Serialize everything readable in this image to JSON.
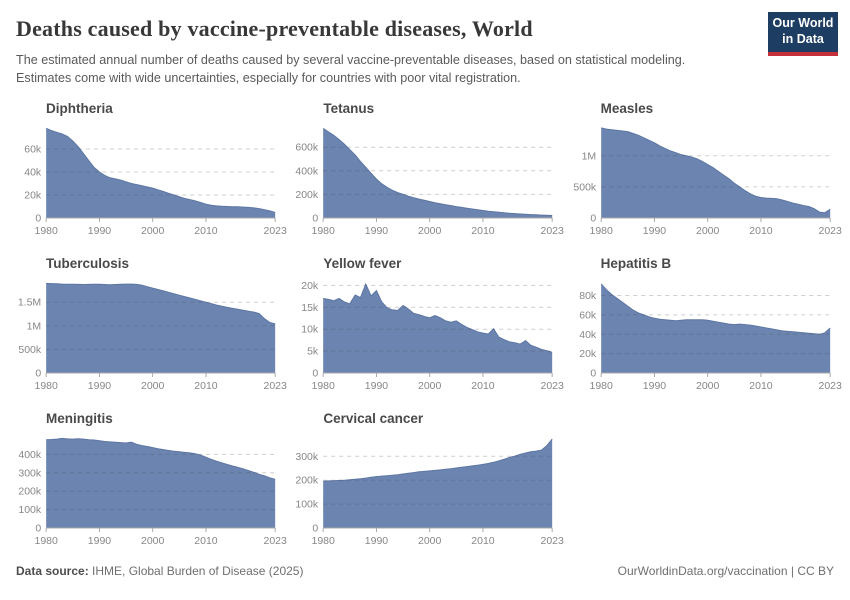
{
  "header": {
    "title": "Deaths caused by vaccine-preventable diseases, World",
    "subtitle": "The estimated annual number of deaths caused by several vaccine-preventable diseases, based on statistical modeling. Estimates come with wide uncertainties, especially for countries with poor vital registration.",
    "logo": {
      "line1": "Our World",
      "line2": "in Data"
    }
  },
  "footer": {
    "source_label": "Data source:",
    "source_value": " IHME, Global Burden of Disease (2025)",
    "credit": "OurWorldinData.org/vaccination | CC BY"
  },
  "colors": {
    "area_fill": "#6b84b0",
    "area_line": "#5d76a4",
    "logo_navy": "#1d3d63",
    "logo_red": "#c5313b",
    "grid": "rgba(80,80,80,0.28)",
    "axis": "#a8a8a8",
    "tick_text": "#878787"
  },
  "chart_data": [
    {
      "type": "area",
      "title": "Diphtheria",
      "x_start": 1980,
      "x_end": 2023,
      "xticks": [
        1980,
        1990,
        2000,
        2010,
        2023
      ],
      "ylim": [
        0,
        80000
      ],
      "yticks": [
        {
          "v": 0,
          "label": "0"
        },
        {
          "v": 20000,
          "label": "20k"
        },
        {
          "v": 40000,
          "label": "40k"
        },
        {
          "v": 60000,
          "label": "60k"
        }
      ],
      "values": [
        78000,
        76000,
        74500,
        73000,
        71000,
        67000,
        62000,
        56000,
        50000,
        44000,
        40000,
        37000,
        35000,
        34000,
        33000,
        31500,
        30000,
        29000,
        28000,
        27000,
        26000,
        24500,
        23000,
        21500,
        20000,
        18500,
        17000,
        16000,
        15000,
        13500,
        12000,
        11000,
        10500,
        10200,
        10000,
        9800,
        9700,
        9500,
        9200,
        8800,
        8200,
        7200,
        6200,
        4800
      ]
    },
    {
      "type": "area",
      "title": "Tetanus",
      "x_start": 1980,
      "x_end": 2023,
      "xticks": [
        1980,
        1990,
        2000,
        2010,
        2023
      ],
      "ylim": [
        0,
        780000
      ],
      "yticks": [
        {
          "v": 0,
          "label": "0"
        },
        {
          "v": 200000,
          "label": "200k"
        },
        {
          "v": 400000,
          "label": "400k"
        },
        {
          "v": 600000,
          "label": "600k"
        }
      ],
      "values": [
        760000,
        730000,
        700000,
        665000,
        625000,
        580000,
        535000,
        480000,
        430000,
        380000,
        330000,
        290000,
        260000,
        235000,
        215000,
        200000,
        185000,
        172000,
        160000,
        150000,
        140000,
        130000,
        121000,
        113000,
        105000,
        97000,
        90000,
        83000,
        76000,
        70000,
        64000,
        58000,
        53000,
        48000,
        44000,
        40000,
        37000,
        34000,
        31000,
        29000,
        27000,
        25000,
        23000,
        21000
      ]
    },
    {
      "type": "area",
      "title": "Measles",
      "x_start": 1980,
      "x_end": 2023,
      "xticks": [
        1980,
        1990,
        2000,
        2010,
        2023
      ],
      "ylim": [
        0,
        1480000
      ],
      "yticks": [
        {
          "v": 0,
          "label": "0"
        },
        {
          "v": 500000,
          "label": "500k"
        },
        {
          "v": 1000000,
          "label": "1M"
        }
      ],
      "values": [
        1450000,
        1430000,
        1420000,
        1410000,
        1400000,
        1390000,
        1360000,
        1330000,
        1290000,
        1250000,
        1210000,
        1160000,
        1120000,
        1080000,
        1050000,
        1020000,
        1000000,
        980000,
        950000,
        910000,
        860000,
        810000,
        750000,
        690000,
        630000,
        560000,
        500000,
        440000,
        390000,
        350000,
        330000,
        320000,
        315000,
        310000,
        290000,
        265000,
        240000,
        220000,
        200000,
        185000,
        150000,
        95000,
        85000,
        140000
      ]
    },
    {
      "type": "area",
      "title": "Tuberculosis",
      "x_start": 1980,
      "x_end": 2023,
      "xticks": [
        1980,
        1990,
        2000,
        2010,
        2023
      ],
      "ylim": [
        0,
        1950000
      ],
      "yticks": [
        {
          "v": 0,
          "label": "0"
        },
        {
          "v": 500000,
          "label": "500k"
        },
        {
          "v": 1000000,
          "label": "1M"
        },
        {
          "v": 1500000,
          "label": "1.5M"
        }
      ],
      "values": [
        1900000,
        1895000,
        1890000,
        1885000,
        1882000,
        1880000,
        1878000,
        1876000,
        1878000,
        1880000,
        1880000,
        1876000,
        1872000,
        1875000,
        1880000,
        1884000,
        1884000,
        1878000,
        1858000,
        1830000,
        1800000,
        1770000,
        1740000,
        1710000,
        1680000,
        1650000,
        1620000,
        1590000,
        1560000,
        1530000,
        1500000,
        1470000,
        1440000,
        1415000,
        1390000,
        1370000,
        1350000,
        1330000,
        1310000,
        1290000,
        1260000,
        1150000,
        1070000,
        1040000
      ]
    },
    {
      "type": "area",
      "title": "Yellow fever",
      "x_start": 1980,
      "x_end": 2023,
      "xticks": [
        1980,
        1990,
        2000,
        2010,
        2023
      ],
      "ylim": [
        0,
        21000
      ],
      "yticks": [
        {
          "v": 0,
          "label": "0"
        },
        {
          "v": 5000,
          "label": "5k"
        },
        {
          "v": 10000,
          "label": "10k"
        },
        {
          "v": 15000,
          "label": "15k"
        },
        {
          "v": 20000,
          "label": "20k"
        }
      ],
      "values": [
        17000,
        16800,
        16500,
        17000,
        16200,
        15800,
        17800,
        17200,
        20300,
        17600,
        18800,
        16200,
        14900,
        14400,
        14300,
        15400,
        14600,
        13600,
        13300,
        12900,
        12600,
        13100,
        12600,
        11900,
        11600,
        11900,
        11100,
        10400,
        9900,
        9400,
        9100,
        8900,
        10100,
        8200,
        7600,
        7100,
        6900,
        6600,
        7400,
        6300,
        5900,
        5400,
        5100,
        4700
      ]
    },
    {
      "type": "area",
      "title": "Hepatitis B",
      "x_start": 1980,
      "x_end": 2023,
      "xticks": [
        1980,
        1990,
        2000,
        2010,
        2023
      ],
      "ylim": [
        0,
        95000
      ],
      "yticks": [
        {
          "v": 0,
          "label": "0"
        },
        {
          "v": 20000,
          "label": "20k"
        },
        {
          "v": 40000,
          "label": "40k"
        },
        {
          "v": 60000,
          "label": "60k"
        },
        {
          "v": 80000,
          "label": "80k"
        }
      ],
      "values": [
        92000,
        86000,
        81000,
        77000,
        73000,
        69000,
        65000,
        62000,
        60000,
        58000,
        56500,
        55500,
        55000,
        54500,
        54000,
        54500,
        55000,
        55000,
        55000,
        55000,
        54500,
        53500,
        52500,
        51500,
        50500,
        50000,
        50500,
        50000,
        49500,
        48500,
        47500,
        46500,
        45500,
        44500,
        43500,
        43000,
        42500,
        42000,
        41500,
        41000,
        40500,
        40000,
        41500,
        46500
      ]
    },
    {
      "type": "area",
      "title": "Meningitis",
      "x_start": 1980,
      "x_end": 2023,
      "xticks": [
        1980,
        1990,
        2000,
        2010,
        2023
      ],
      "ylim": [
        0,
        500000
      ],
      "yticks": [
        {
          "v": 0,
          "label": "0"
        },
        {
          "v": 100000,
          "label": "100k"
        },
        {
          "v": 200000,
          "label": "200k"
        },
        {
          "v": 300000,
          "label": "300k"
        },
        {
          "v": 400000,
          "label": "400k"
        }
      ],
      "values": [
        480000,
        481000,
        483000,
        487000,
        484000,
        483000,
        485000,
        483000,
        480000,
        478000,
        474000,
        470000,
        468000,
        466000,
        464000,
        462000,
        467000,
        455000,
        448000,
        443000,
        437000,
        431000,
        426000,
        421000,
        417000,
        414000,
        411000,
        408000,
        404000,
        396000,
        385000,
        373000,
        363000,
        354000,
        345000,
        337000,
        330000,
        321000,
        312000,
        302000,
        292000,
        283000,
        273000,
        264000
      ]
    },
    {
      "type": "area",
      "title": "Cervical cancer",
      "x_start": 1980,
      "x_end": 2023,
      "xticks": [
        1980,
        1990,
        2000,
        2010,
        2023
      ],
      "ylim": [
        0,
        385000
      ],
      "yticks": [
        {
          "v": 0,
          "label": "0"
        },
        {
          "v": 100000,
          "label": "100k"
        },
        {
          "v": 200000,
          "label": "200k"
        },
        {
          "v": 300000,
          "label": "300k"
        }
      ],
      "values": [
        196000,
        197000,
        198000,
        199000,
        200000,
        202000,
        204000,
        206000,
        209000,
        212000,
        215000,
        217000,
        219000,
        221000,
        223000,
        226000,
        229000,
        232000,
        235000,
        237000,
        239000,
        241000,
        243000,
        246000,
        248000,
        251000,
        254000,
        257000,
        260000,
        263000,
        266000,
        270000,
        275000,
        281000,
        288000,
        295000,
        301000,
        308000,
        314000,
        319000,
        322000,
        326000,
        345000,
        372000
      ]
    }
  ]
}
